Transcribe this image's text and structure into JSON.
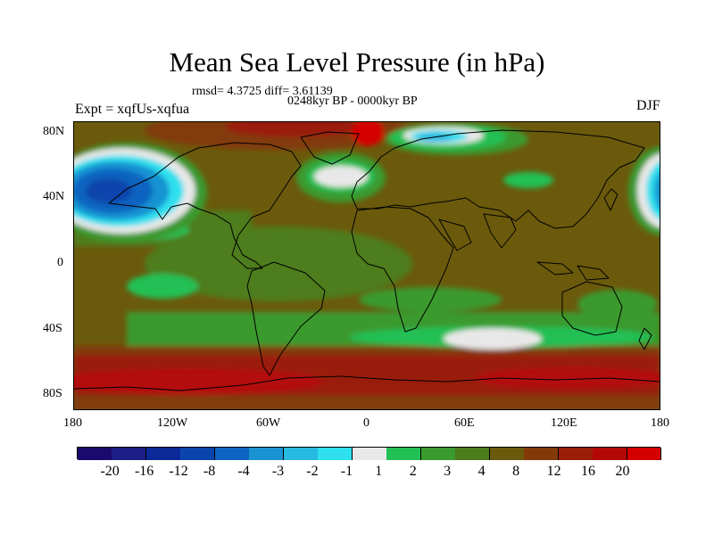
{
  "title": "Mean Sea Level Pressure (in hPa)",
  "stats": "rmsd= 4.3725 diff= 3.61139",
  "period": "0248kyr BP - 0000kyr BP",
  "expt": "Expt = xqfUs-xqfua",
  "season": "DJF",
  "lat_labels": [
    "80N",
    "40N",
    "0",
    "40S",
    "80S"
  ],
  "lon_labels": [
    "180",
    "120W",
    "60W",
    "0",
    "60E",
    "120E",
    "180"
  ],
  "colorbar": {
    "labels": [
      "-20",
      "-16",
      "-12",
      "-8",
      "-4",
      "-3",
      "-2",
      "-1",
      "1",
      "2",
      "3",
      "4",
      "8",
      "12",
      "16",
      "20"
    ],
    "colors": [
      "#1a0a6e",
      "#1c1f86",
      "#0b2a98",
      "#0a45ac",
      "#0e64c0",
      "#1993d2",
      "#27b9e0",
      "#2ee0ee",
      "#e8e8e8",
      "#22c054",
      "#3a9a2e",
      "#4e7d1c",
      "#6b5a0c",
      "#823a08",
      "#9a1e08",
      "#b40808",
      "#d40000"
    ]
  }
}
